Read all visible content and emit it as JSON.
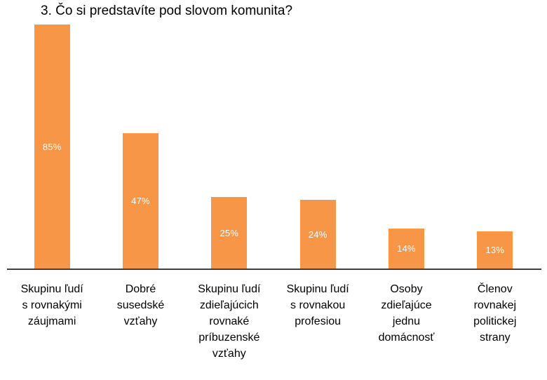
{
  "chart_data": {
    "type": "bar",
    "title": "3. Čo si predstavíte pod slovom komunita?",
    "categories": [
      "Skupinu ľudí\ns rovnakými\nzáujmami",
      "Dobré\nsusedské\nvzťahy",
      "Skupinu ľudí\nzdieľajúcich\nrovnaké\npríbuzenské\nvzťahy",
      "Skupinu ľudí\ns rovnakou\nprofesiou",
      "Osoby\nzdieľajúce\njednu\ndomácnosť",
      "Členov\nrovnakej\npolitickej\nstrany"
    ],
    "values": [
      85,
      47,
      25,
      24,
      14,
      13
    ],
    "data_labels": [
      "85%",
      "47%",
      "25%",
      "24%",
      "14%",
      "13%"
    ],
    "unit": "%",
    "xlabel": "",
    "ylabel": "",
    "ylim": [
      0,
      90
    ],
    "grid": false,
    "legend": false,
    "bar_color": "#F79646",
    "data_label_color": "#FFFFFF",
    "axis_line_color": "#3F3F3F",
    "title_color": "#000000",
    "category_label_color": "#000000"
  }
}
